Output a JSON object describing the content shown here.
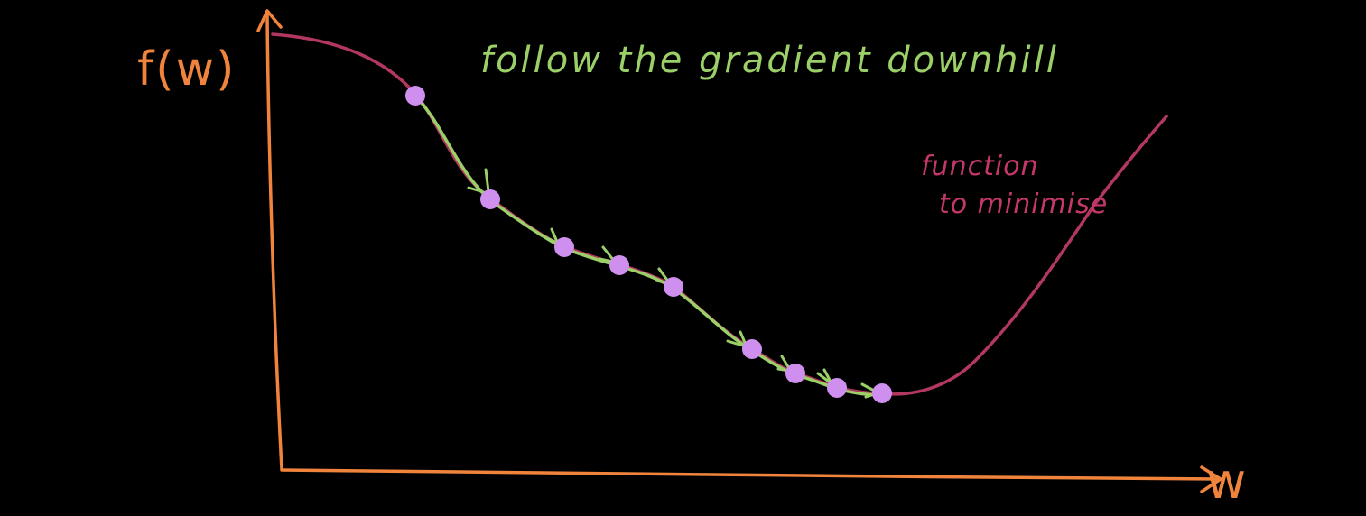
{
  "title": "follow the gradient downhill",
  "axes": {
    "y_label": "f(w)",
    "x_label": "w"
  },
  "annotation": {
    "line1": "function",
    "line2": "to minimise"
  },
  "colors": {
    "background": "#000000",
    "axes": "#f0843c",
    "curve": "#b3385f",
    "title": "#9bcf68",
    "annotation": "#c4376b",
    "path": "#9bcf68",
    "dots": "#cf8fef"
  },
  "descent_steps": 9
}
